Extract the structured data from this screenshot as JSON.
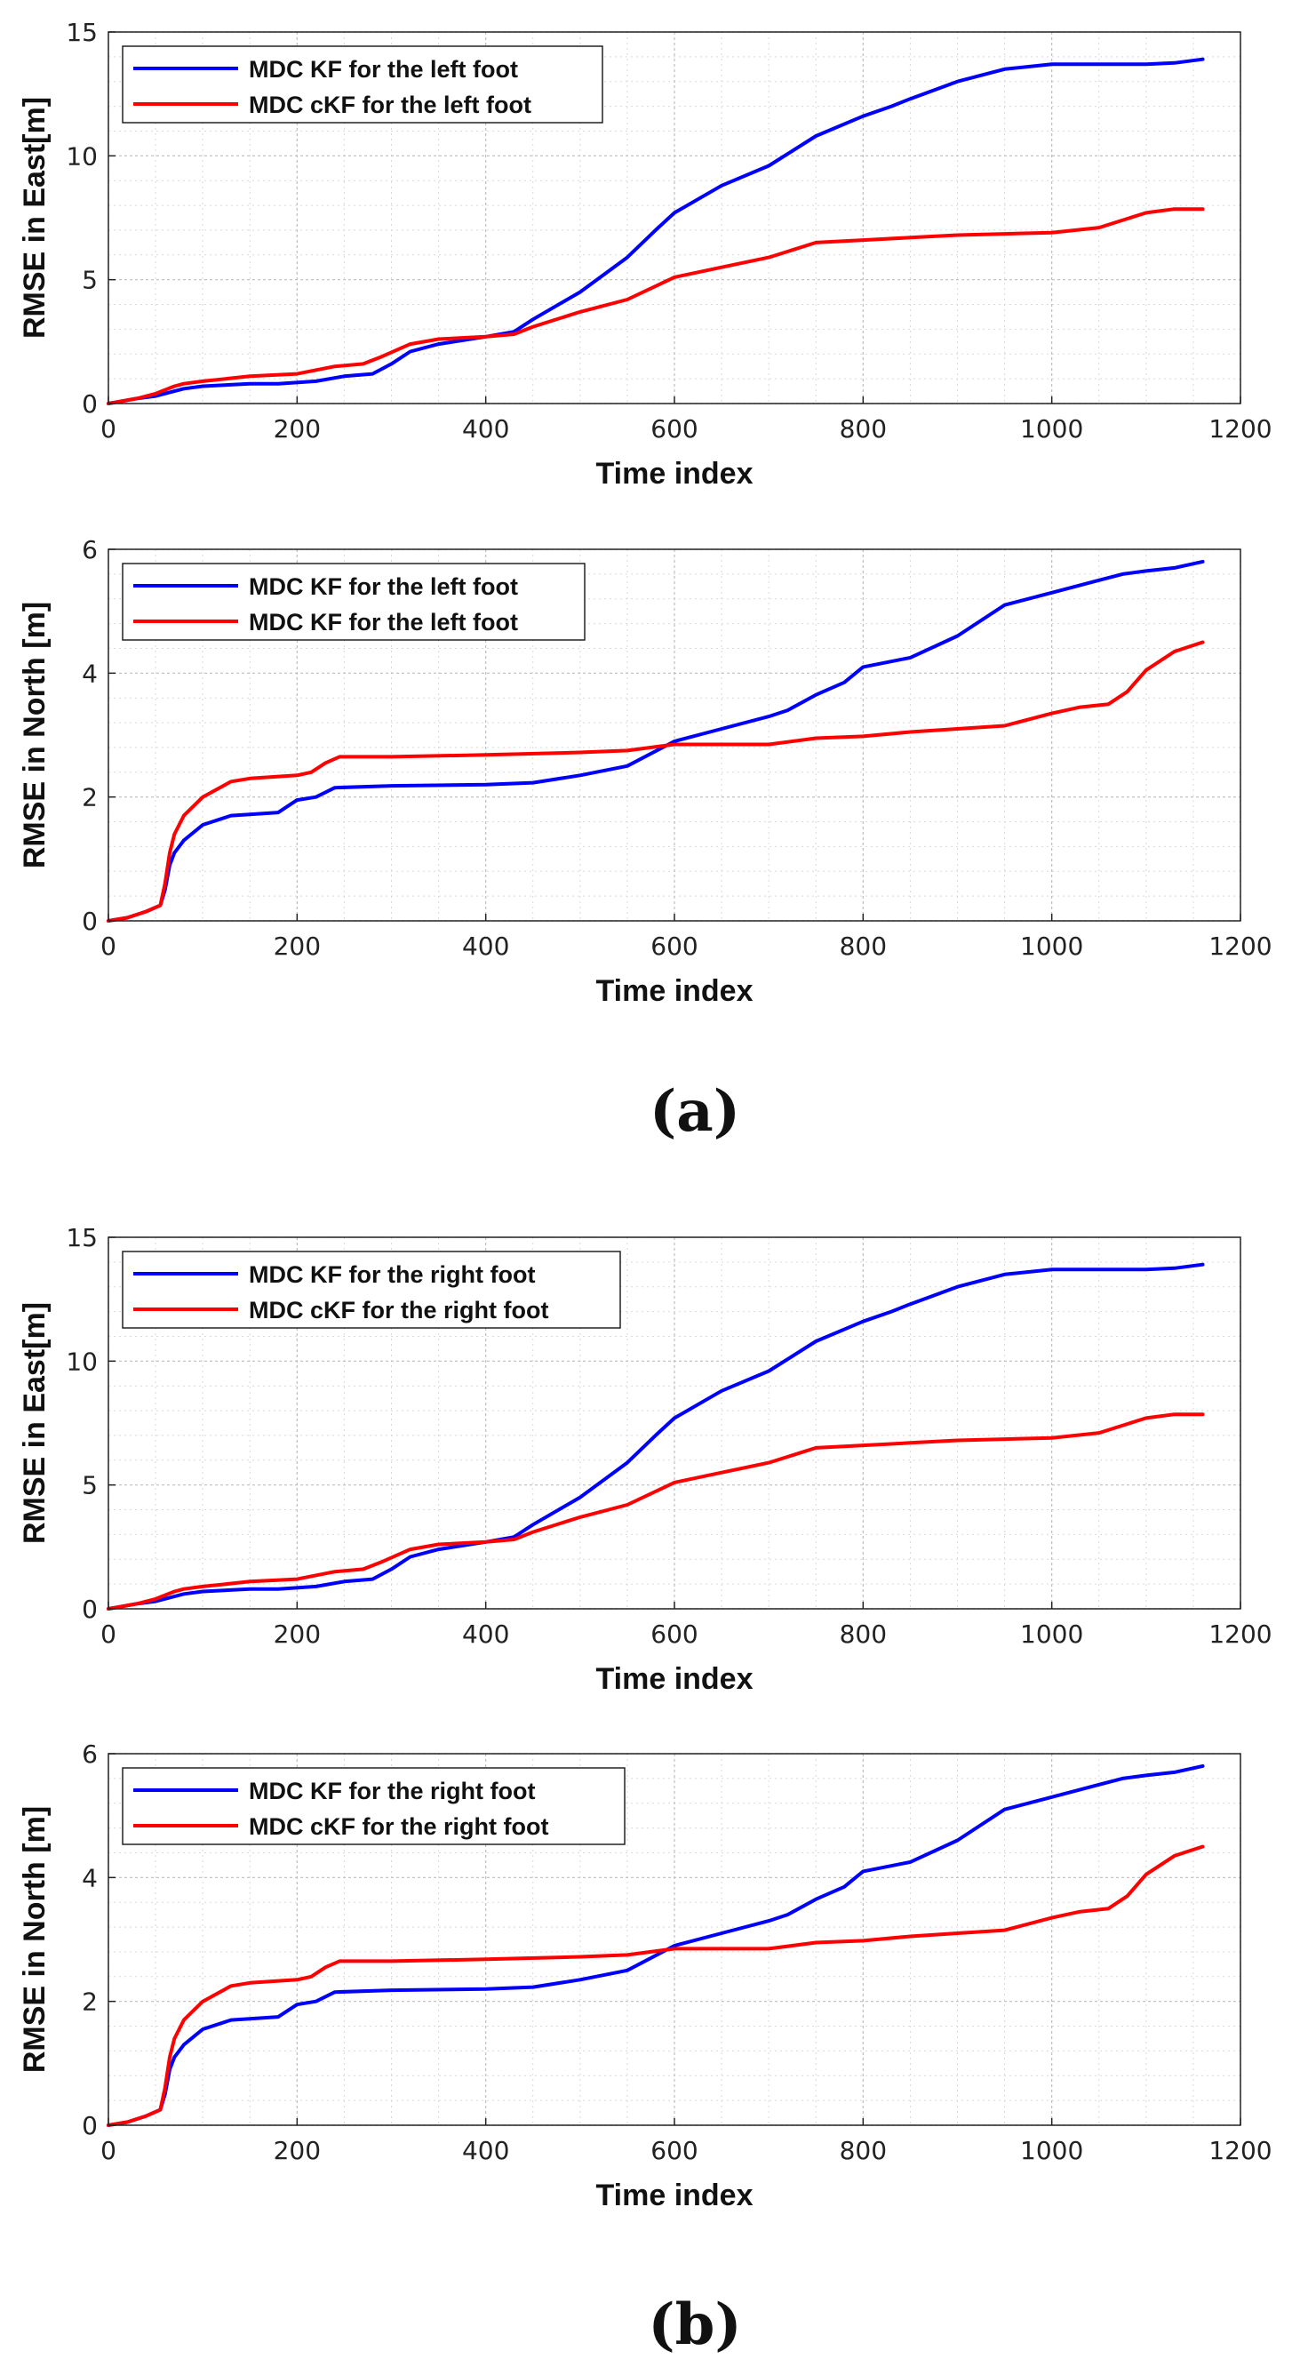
{
  "figure": {
    "caption_a": "(a)",
    "caption_b": "(b)"
  },
  "chart_data": [
    {
      "type": "line",
      "ylabel": "RMSE in East[m]",
      "xlabel": "Time index",
      "xlim": [
        0,
        1200
      ],
      "ylim": [
        0,
        15
      ],
      "xticks": [
        0,
        200,
        400,
        600,
        800,
        1000,
        1200
      ],
      "yticks": [
        0,
        5,
        10,
        15
      ],
      "grid": true,
      "legend_position": "top-left",
      "series": [
        {
          "name": "MDC KF for the left foot",
          "color": "#0000ff",
          "x": [
            0,
            30,
            50,
            70,
            80,
            100,
            150,
            180,
            220,
            250,
            280,
            300,
            320,
            350,
            400,
            430,
            450,
            500,
            550,
            580,
            600,
            650,
            700,
            750,
            800,
            830,
            850,
            900,
            950,
            1000,
            1050,
            1100,
            1130,
            1160
          ],
          "y": [
            0,
            0.2,
            0.3,
            0.5,
            0.6,
            0.7,
            0.8,
            0.8,
            0.9,
            1.1,
            1.2,
            1.6,
            2.1,
            2.4,
            2.7,
            2.9,
            3.4,
            4.5,
            5.9,
            7.0,
            7.7,
            8.8,
            9.6,
            10.8,
            11.6,
            12.0,
            12.3,
            13.0,
            13.5,
            13.7,
            13.7,
            13.7,
            13.75,
            13.9
          ]
        },
        {
          "name": "MDC cKF for the left foot",
          "color": "#ff0000",
          "x": [
            0,
            30,
            50,
            70,
            80,
            100,
            150,
            200,
            240,
            270,
            290,
            320,
            350,
            400,
            430,
            450,
            500,
            550,
            600,
            650,
            700,
            750,
            800,
            850,
            900,
            950,
            1000,
            1050,
            1100,
            1130,
            1160
          ],
          "y": [
            0,
            0.2,
            0.4,
            0.7,
            0.8,
            0.9,
            1.1,
            1.2,
            1.5,
            1.6,
            1.9,
            2.4,
            2.6,
            2.7,
            2.8,
            3.1,
            3.7,
            4.2,
            5.1,
            5.5,
            5.9,
            6.5,
            6.6,
            6.7,
            6.8,
            6.85,
            6.9,
            7.1,
            7.7,
            7.85,
            7.85
          ]
        }
      ]
    },
    {
      "type": "line",
      "ylabel": "RMSE in North [m]",
      "xlabel": "Time index",
      "xlim": [
        0,
        1200
      ],
      "ylim": [
        0,
        6
      ],
      "xticks": [
        0,
        200,
        400,
        600,
        800,
        1000,
        1200
      ],
      "yticks": [
        0,
        2,
        4,
        6
      ],
      "grid": true,
      "legend_position": "top-left",
      "series": [
        {
          "name": "MDC KF for the left foot",
          "color": "#0000ff",
          "x": [
            0,
            20,
            40,
            55,
            60,
            65,
            70,
            80,
            100,
            130,
            180,
            200,
            220,
            240,
            300,
            400,
            450,
            500,
            550,
            600,
            650,
            700,
            720,
            750,
            780,
            800,
            850,
            900,
            950,
            1000,
            1050,
            1075,
            1100,
            1130,
            1160
          ],
          "y": [
            0,
            0.05,
            0.15,
            0.25,
            0.5,
            0.9,
            1.1,
            1.3,
            1.55,
            1.7,
            1.75,
            1.95,
            2.0,
            2.15,
            2.18,
            2.2,
            2.23,
            2.35,
            2.5,
            2.9,
            3.1,
            3.3,
            3.4,
            3.65,
            3.85,
            4.1,
            4.25,
            4.6,
            5.1,
            5.3,
            5.5,
            5.6,
            5.65,
            5.7,
            5.8
          ]
        },
        {
          "name": "MDC KF for the left foot",
          "color": "#ff0000",
          "x": [
            0,
            20,
            40,
            55,
            60,
            65,
            70,
            80,
            100,
            130,
            150,
            200,
            215,
            230,
            245,
            300,
            400,
            500,
            550,
            600,
            650,
            700,
            750,
            800,
            850,
            900,
            950,
            1000,
            1030,
            1060,
            1080,
            1100,
            1130,
            1160
          ],
          "y": [
            0,
            0.05,
            0.15,
            0.25,
            0.6,
            1.1,
            1.4,
            1.7,
            2.0,
            2.25,
            2.3,
            2.35,
            2.4,
            2.55,
            2.65,
            2.65,
            2.68,
            2.72,
            2.75,
            2.85,
            2.85,
            2.85,
            2.95,
            2.98,
            3.05,
            3.1,
            3.15,
            3.35,
            3.45,
            3.5,
            3.7,
            4.05,
            4.35,
            4.5
          ]
        }
      ]
    },
    {
      "type": "line",
      "ylabel": "RMSE in East[m]",
      "xlabel": "Time index",
      "xlim": [
        0,
        1200
      ],
      "ylim": [
        0,
        15
      ],
      "xticks": [
        0,
        200,
        400,
        600,
        800,
        1000,
        1200
      ],
      "yticks": [
        0,
        5,
        10,
        15
      ],
      "grid": true,
      "legend_position": "top-left",
      "series": [
        {
          "name": "MDC KF for the right foot",
          "color": "#0000ff",
          "x": [
            0,
            30,
            50,
            70,
            80,
            100,
            150,
            180,
            220,
            250,
            280,
            300,
            320,
            350,
            400,
            430,
            450,
            500,
            550,
            580,
            600,
            650,
            700,
            750,
            800,
            830,
            850,
            900,
            950,
            1000,
            1050,
            1100,
            1130,
            1160
          ],
          "y": [
            0,
            0.2,
            0.3,
            0.5,
            0.6,
            0.7,
            0.8,
            0.8,
            0.9,
            1.1,
            1.2,
            1.6,
            2.1,
            2.4,
            2.7,
            2.9,
            3.4,
            4.5,
            5.9,
            7.0,
            7.7,
            8.8,
            9.6,
            10.8,
            11.6,
            12.0,
            12.3,
            13.0,
            13.5,
            13.7,
            13.7,
            13.7,
            13.75,
            13.9
          ]
        },
        {
          "name": "MDC cKF for the right foot",
          "color": "#ff0000",
          "x": [
            0,
            30,
            50,
            70,
            80,
            100,
            150,
            200,
            240,
            270,
            290,
            320,
            350,
            400,
            430,
            450,
            500,
            550,
            600,
            650,
            700,
            750,
            800,
            850,
            900,
            950,
            1000,
            1050,
            1100,
            1130,
            1160
          ],
          "y": [
            0,
            0.2,
            0.4,
            0.7,
            0.8,
            0.9,
            1.1,
            1.2,
            1.5,
            1.6,
            1.9,
            2.4,
            2.6,
            2.7,
            2.8,
            3.1,
            3.7,
            4.2,
            5.1,
            5.5,
            5.9,
            6.5,
            6.6,
            6.7,
            6.8,
            6.85,
            6.9,
            7.1,
            7.7,
            7.85,
            7.85
          ]
        }
      ]
    },
    {
      "type": "line",
      "ylabel": "RMSE in North [m]",
      "xlabel": "Time index",
      "xlim": [
        0,
        1200
      ],
      "ylim": [
        0,
        6
      ],
      "xticks": [
        0,
        200,
        400,
        600,
        800,
        1000,
        1200
      ],
      "yticks": [
        0,
        2,
        4,
        6
      ],
      "grid": true,
      "legend_position": "top-left",
      "series": [
        {
          "name": "MDC KF for the right foot",
          "color": "#0000ff",
          "x": [
            0,
            20,
            40,
            55,
            60,
            65,
            70,
            80,
            100,
            130,
            180,
            200,
            220,
            240,
            300,
            400,
            450,
            500,
            550,
            600,
            650,
            700,
            720,
            750,
            780,
            800,
            850,
            900,
            950,
            1000,
            1050,
            1075,
            1100,
            1130,
            1160
          ],
          "y": [
            0,
            0.05,
            0.15,
            0.25,
            0.5,
            0.9,
            1.1,
            1.3,
            1.55,
            1.7,
            1.75,
            1.95,
            2.0,
            2.15,
            2.18,
            2.2,
            2.23,
            2.35,
            2.5,
            2.9,
            3.1,
            3.3,
            3.4,
            3.65,
            3.85,
            4.1,
            4.25,
            4.6,
            5.1,
            5.3,
            5.5,
            5.6,
            5.65,
            5.7,
            5.8
          ]
        },
        {
          "name": "MDC cKF for the right foot",
          "color": "#ff0000",
          "x": [
            0,
            20,
            40,
            55,
            60,
            65,
            70,
            80,
            100,
            130,
            150,
            200,
            215,
            230,
            245,
            300,
            400,
            500,
            550,
            600,
            650,
            700,
            750,
            800,
            850,
            900,
            950,
            1000,
            1030,
            1060,
            1080,
            1100,
            1130,
            1160
          ],
          "y": [
            0,
            0.05,
            0.15,
            0.25,
            0.6,
            1.1,
            1.4,
            1.7,
            2.0,
            2.25,
            2.3,
            2.35,
            2.4,
            2.55,
            2.65,
            2.65,
            2.68,
            2.72,
            2.75,
            2.85,
            2.85,
            2.85,
            2.95,
            2.98,
            3.05,
            3.1,
            3.15,
            3.35,
            3.45,
            3.5,
            3.7,
            4.05,
            4.35,
            4.5
          ]
        }
      ]
    }
  ]
}
